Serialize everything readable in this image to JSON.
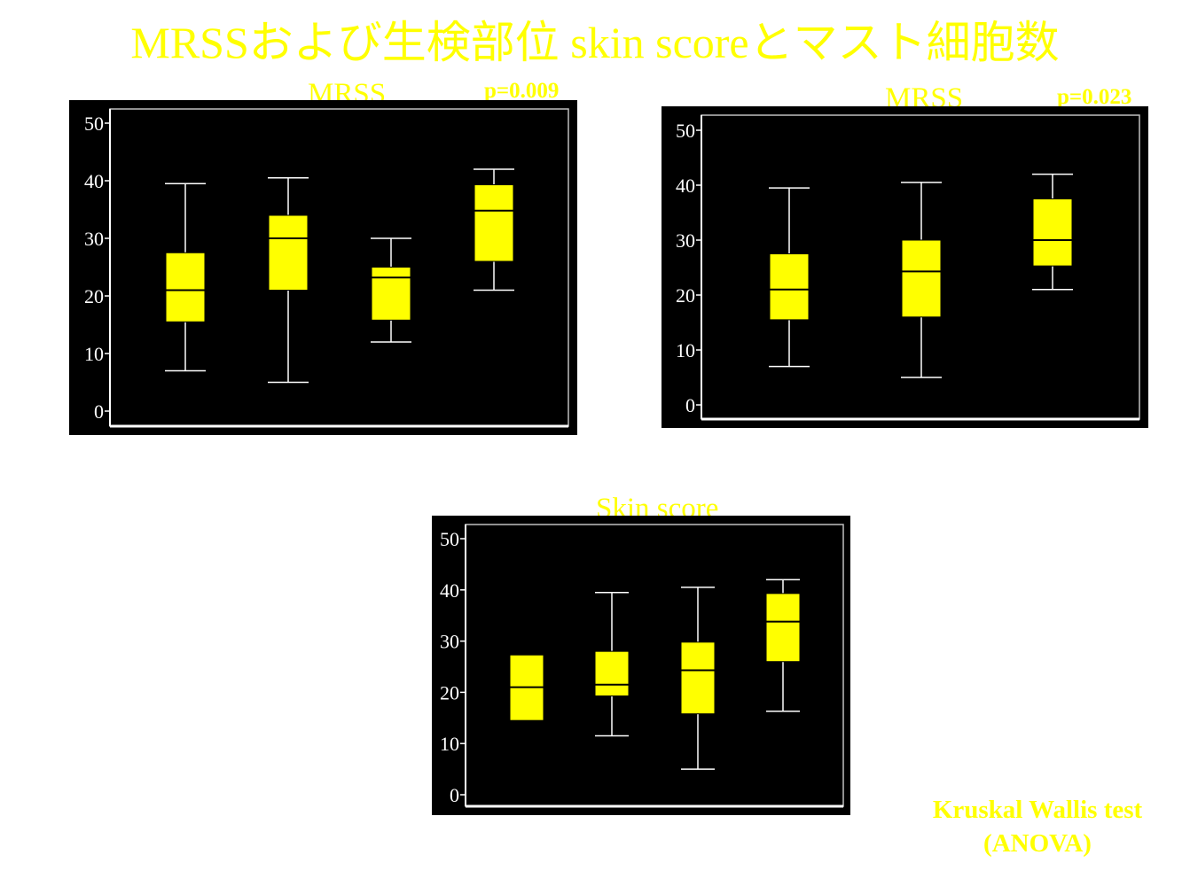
{
  "page_title": "MRSSおよび生検部位 skin scoreとマスト細胞数",
  "test_note": {
    "line1": "Kruskal Wallis test",
    "line2": "(ANOVA)"
  },
  "colors": {
    "box_fill": "#ffff00",
    "background": "#000000",
    "title_text": "#ffff00",
    "whisker": "#ffffff"
  },
  "chart_data": [
    {
      "type": "box",
      "title": "MRSS",
      "p_value": "p=0.009",
      "ylim": [
        0,
        50
      ],
      "yticks": [
        0,
        10,
        20,
        30,
        40,
        50
      ],
      "grid": false,
      "boxes": [
        {
          "min": 7,
          "q1": 15.5,
          "median": 21,
          "q3": 27.5,
          "max": 39.5
        },
        {
          "min": 5,
          "q1": 21,
          "median": 30,
          "q3": 34,
          "max": 40.5
        },
        {
          "min": 12,
          "q1": 15.8,
          "median": 23.2,
          "q3": 25,
          "max": 30
        },
        {
          "min": 21,
          "q1": 26,
          "median": 34.8,
          "q3": 39.3,
          "max": 42
        }
      ]
    },
    {
      "type": "box",
      "title": "MRSS",
      "p_value": "p=0.023",
      "ylim": [
        0,
        50
      ],
      "yticks": [
        0,
        10,
        20,
        30,
        40,
        50
      ],
      "grid": false,
      "boxes": [
        {
          "min": 7,
          "q1": 15.5,
          "median": 21,
          "q3": 27.5,
          "max": 39.5
        },
        {
          "min": 5,
          "q1": 16,
          "median": 24.3,
          "q3": 30,
          "max": 40.5
        },
        {
          "min": 21,
          "q1": 25.3,
          "median": 30,
          "q3": 37.5,
          "max": 42
        }
      ]
    },
    {
      "type": "box",
      "title": "Skin score",
      "ylim": [
        0,
        50
      ],
      "yticks": [
        0,
        10,
        20,
        30,
        40,
        50
      ],
      "grid": false,
      "boxes": [
        {
          "q1": 14.5,
          "median": 21,
          "q3": 27.3
        },
        {
          "min": 11.5,
          "q1": 19.3,
          "median": 21.5,
          "q3": 28,
          "max": 39.5
        },
        {
          "min": 5,
          "q1": 15.8,
          "median": 24.3,
          "q3": 29.8,
          "max": 40.5
        },
        {
          "min": 16.3,
          "q1": 26,
          "median": 33.8,
          "q3": 39.3,
          "max": 42
        }
      ]
    }
  ]
}
